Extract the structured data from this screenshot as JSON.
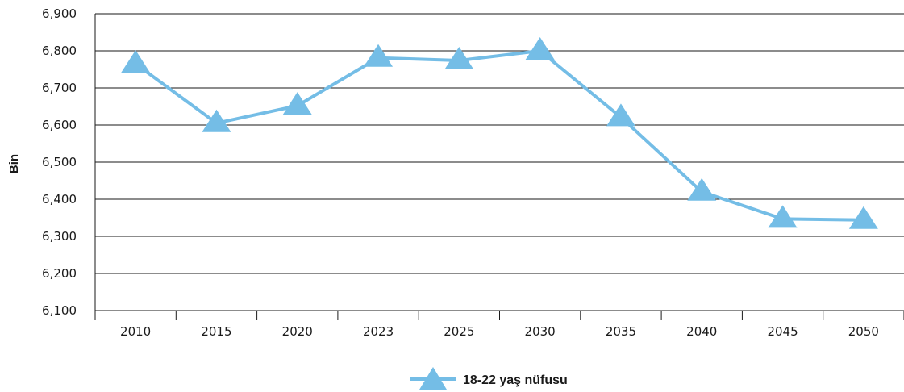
{
  "chart_data": {
    "type": "line",
    "title": "",
    "xlabel": "",
    "ylabel": "Bin",
    "categories": [
      "2010",
      "2015",
      "2020",
      "2023",
      "2025",
      "2030",
      "2035",
      "2040",
      "2045",
      "2050"
    ],
    "series": [
      {
        "name": "18-22 yaş nüfusu",
        "values": [
          6765,
          6605,
          6652,
          6781,
          6774,
          6800,
          6621,
          6420,
          6347,
          6344
        ],
        "color": "#74bde6",
        "marker": "triangle"
      }
    ],
    "ylim": [
      6100,
      6900
    ],
    "yticks": [
      6100,
      6200,
      6300,
      6400,
      6500,
      6600,
      6700,
      6800,
      6900
    ],
    "ytick_labels": [
      "6,100",
      "6,200",
      "6,300",
      "6,400",
      "6,500",
      "6,600",
      "6,700",
      "6,800",
      "6,900"
    ],
    "grid": true,
    "legend_position": "bottom-center"
  }
}
